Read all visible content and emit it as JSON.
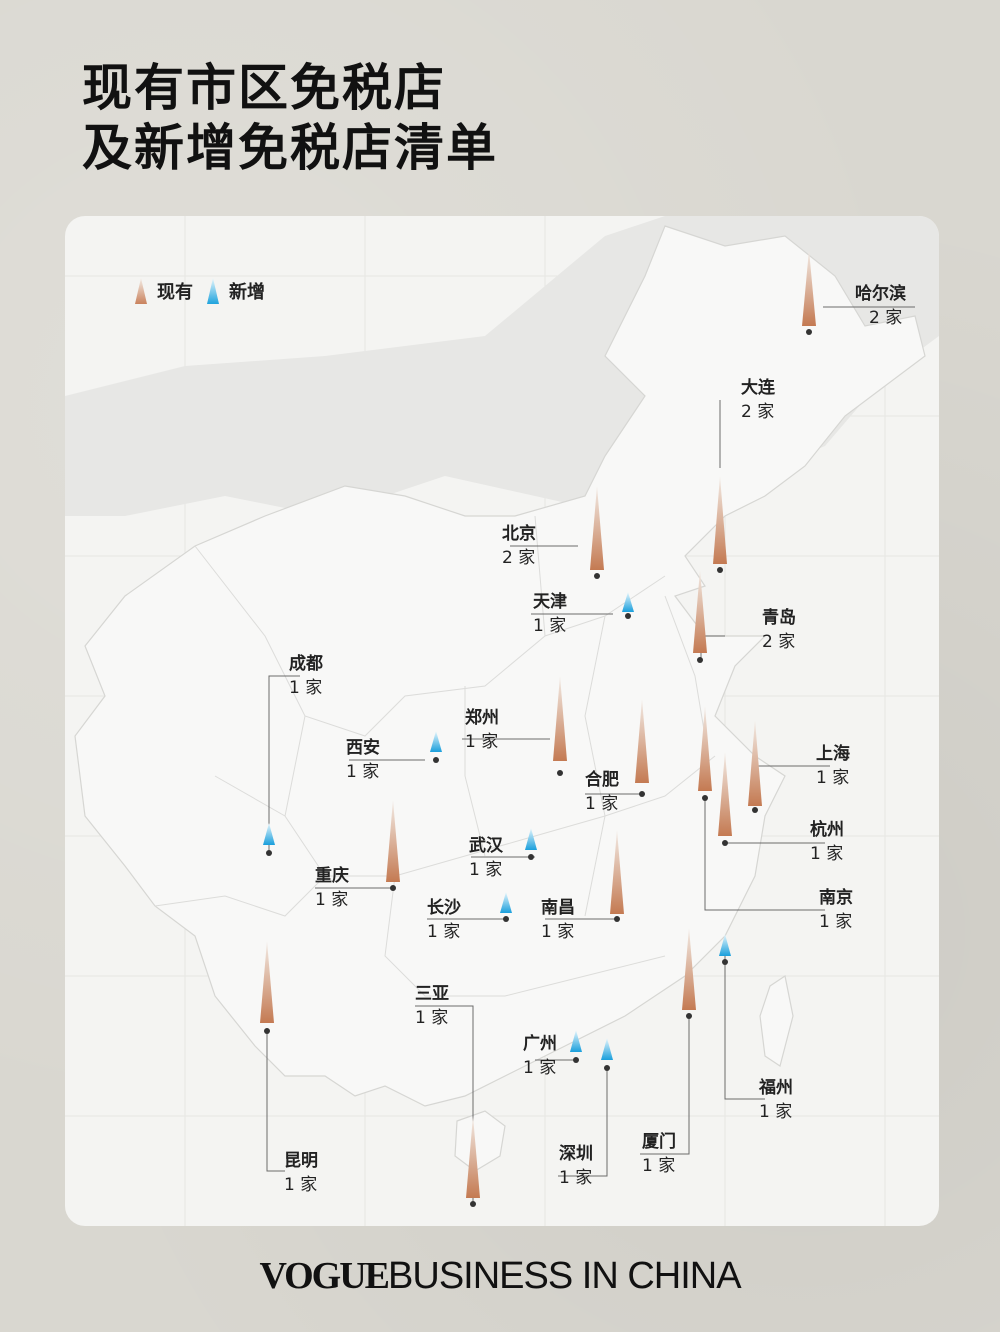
{
  "title": {
    "line1": "现有市区免税店",
    "line2": "及新增免税店清单"
  },
  "legend": {
    "existing_label": "现有",
    "new_label": "新增",
    "colors": {
      "existing": "#c9825d",
      "new": "#1fa3dd"
    }
  },
  "cities": {
    "haerbin": {
      "name": "哈尔滨",
      "count": "2 家",
      "type": "existing"
    },
    "dalian": {
      "name": "大连",
      "count": "2 家",
      "type": "existing"
    },
    "beijing": {
      "name": "北京",
      "count": "2 家",
      "type": "existing"
    },
    "tianjin": {
      "name": "天津",
      "count": "1 家",
      "type": "new"
    },
    "qingdao": {
      "name": "青岛",
      "count": "2 家",
      "type": "existing"
    },
    "chengdu": {
      "name": "成都",
      "count": "1 家",
      "type": "new"
    },
    "zhengzhou": {
      "name": "郑州",
      "count": "1 家",
      "type": "existing"
    },
    "xian": {
      "name": "西安",
      "count": "1 家",
      "type": "new"
    },
    "hefei": {
      "name": "合肥",
      "count": "1 家",
      "type": "existing"
    },
    "shanghai": {
      "name": "上海",
      "count": "1 家",
      "type": "existing"
    },
    "hangzhou": {
      "name": "杭州",
      "count": "1 家",
      "type": "existing"
    },
    "wuhan": {
      "name": "武汉",
      "count": "1 家",
      "type": "new"
    },
    "chongqing": {
      "name": "重庆",
      "count": "1 家",
      "type": "existing"
    },
    "changsha": {
      "name": "长沙",
      "count": "1 家",
      "type": "new"
    },
    "nanchang": {
      "name": "南昌",
      "count": "1 家",
      "type": "existing"
    },
    "nanjing": {
      "name": "南京",
      "count": "1 家",
      "type": "existing"
    },
    "sanya": {
      "name": "三亚",
      "count": "1 家",
      "type": "existing"
    },
    "guangzhou": {
      "name": "广州",
      "count": "1 家",
      "type": "new"
    },
    "shenzhen": {
      "name": "深圳",
      "count": "1 家",
      "type": "new"
    },
    "xiamen": {
      "name": "厦门",
      "count": "1 家",
      "type": "existing"
    },
    "fuzhou": {
      "name": "福州",
      "count": "1 家",
      "type": "new"
    },
    "kunming": {
      "name": "昆明",
      "count": "1 家",
      "type": "existing"
    }
  },
  "footer": {
    "brand": "VOGUE",
    "rest": "BUSINESS IN CHINA"
  }
}
